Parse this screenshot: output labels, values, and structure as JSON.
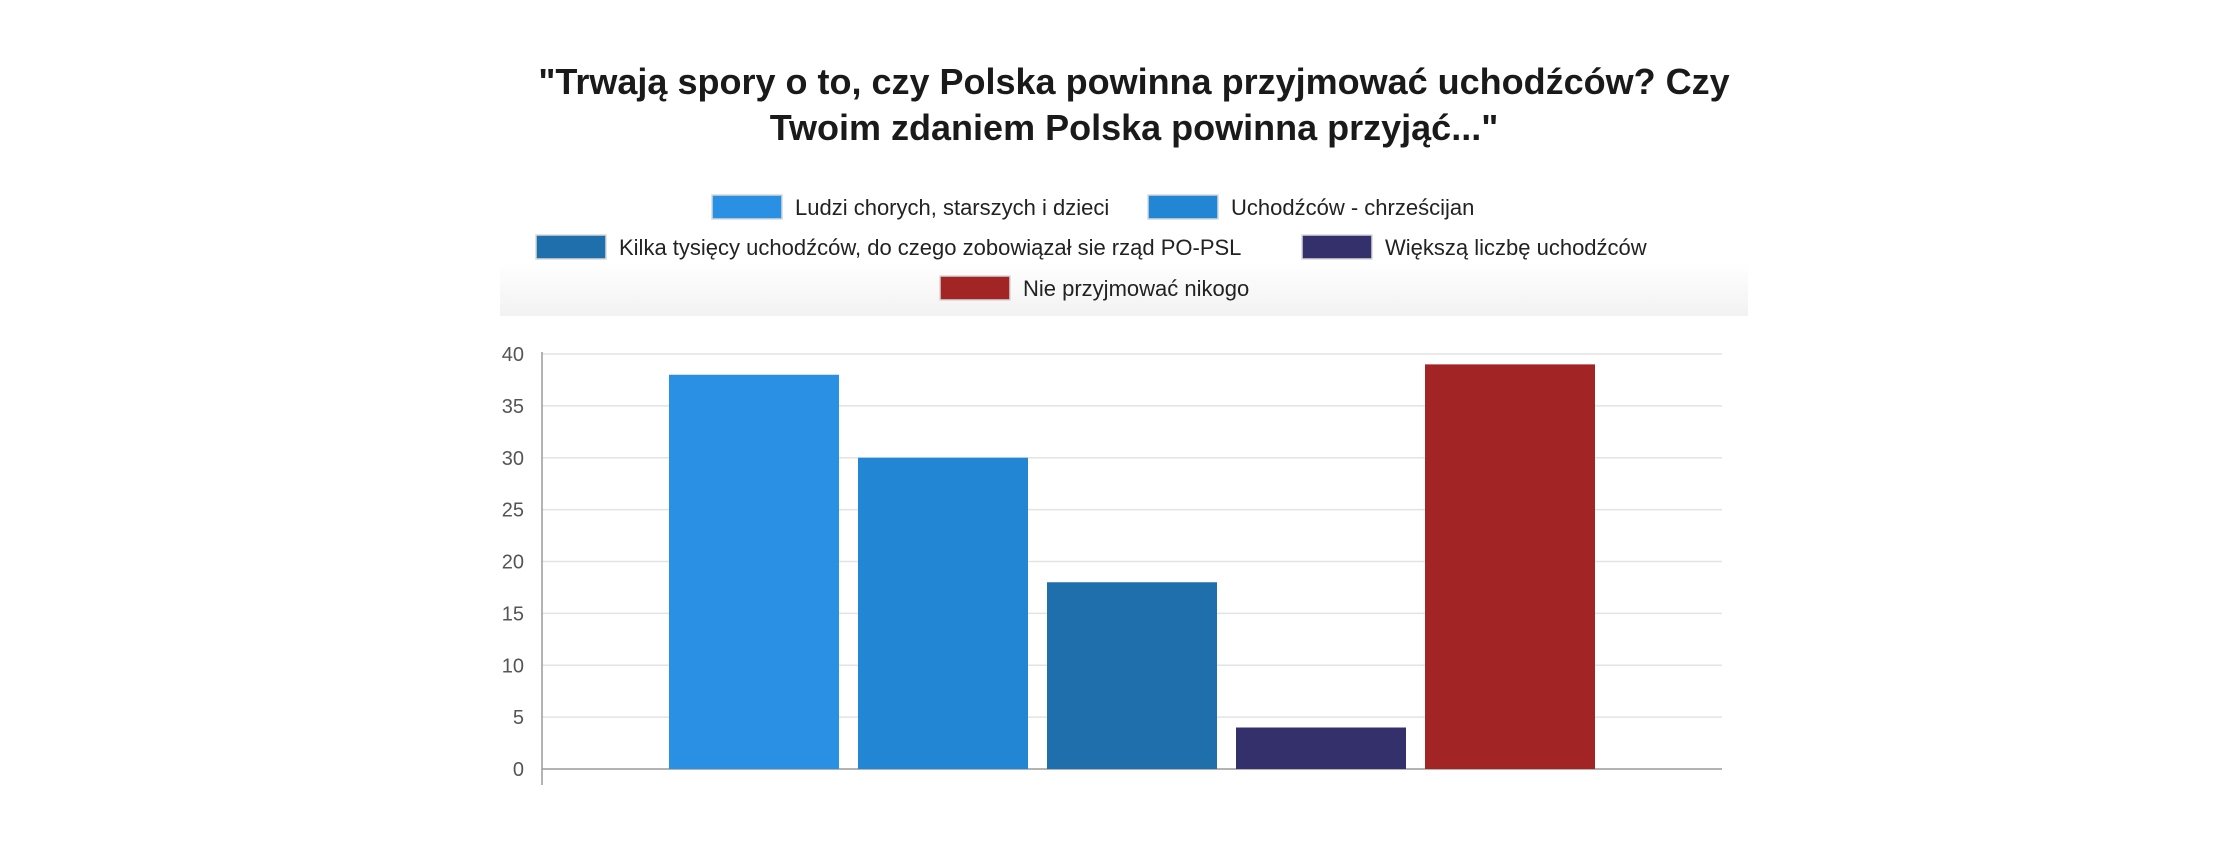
{
  "chart_data": {
    "type": "bar",
    "title_lines": [
      "\"Trwają spory o to, czy Polska powinna przyjmować uchodźców? Czy",
      "Twoim zdaniem Polska powinna przyjąć...\""
    ],
    "ylim": [
      0,
      40
    ],
    "yticks": [
      0,
      5,
      10,
      15,
      20,
      25,
      30,
      35,
      40
    ],
    "grid": true,
    "legend_position": "top",
    "series": [
      {
        "name": "Ludzi chorych, starszych i dzieci",
        "value": 38,
        "color": "#2a90e3"
      },
      {
        "name": "Uchodźców - chrześcijan",
        "value": 30,
        "color": "#2386d4"
      },
      {
        "name": "Kilka tysięcy uchodźców, do czego zobowiązał sie rząd PO-PSL",
        "value": 18,
        "color": "#1f6fac"
      },
      {
        "name": "Większą liczbę uchodźców",
        "value": 4,
        "color": "#33306b"
      },
      {
        "name": "Nie przyjmować nikogo",
        "value": 39,
        "color": "#a32424"
      }
    ]
  }
}
